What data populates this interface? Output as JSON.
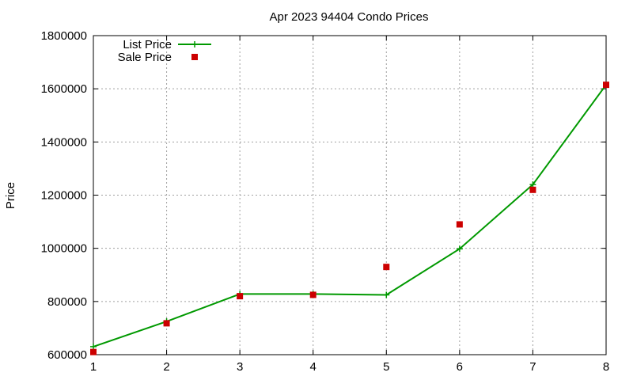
{
  "chart_data": {
    "type": "line",
    "title": "Apr 2023 94404 Condo Prices",
    "xlabel": "",
    "ylabel": "Price",
    "xlim": [
      1,
      8
    ],
    "ylim": [
      600000,
      1800000
    ],
    "x_ticks": [
      1,
      2,
      3,
      4,
      5,
      6,
      7,
      8
    ],
    "y_ticks": [
      600000,
      800000,
      1000000,
      1200000,
      1400000,
      1600000,
      1800000
    ],
    "grid": true,
    "legend_position": "top-left",
    "series": [
      {
        "name": "List Price",
        "style": "line-with-plus-markers",
        "color": "#009900",
        "x": [
          1,
          2,
          3,
          4,
          5,
          6,
          7,
          8
        ],
        "y": [
          630000,
          725000,
          828000,
          828000,
          825000,
          998000,
          1240000,
          1615000
        ]
      },
      {
        "name": "Sale Price",
        "style": "square-markers",
        "color": "#cc0000",
        "x": [
          1,
          2,
          3,
          4,
          5,
          6,
          7,
          8
        ],
        "y": [
          610000,
          718000,
          820000,
          825000,
          930000,
          1090000,
          1220000,
          1615000
        ]
      }
    ]
  }
}
